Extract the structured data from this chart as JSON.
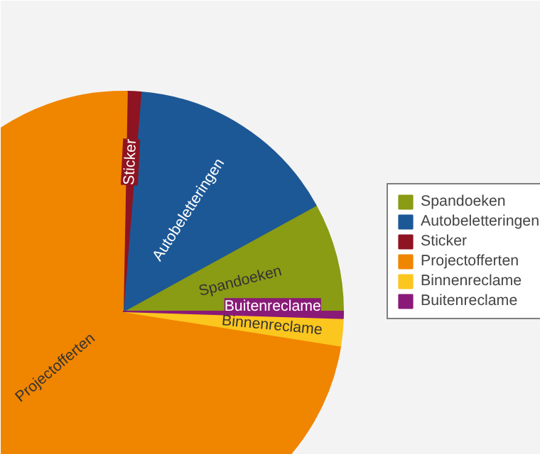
{
  "chart_data": {
    "type": "pie",
    "categories": [
      "Spandoeken",
      "Autobeletteringen",
      "Sticker",
      "Projectofferten",
      "Binnenreclame",
      "Buitenreclame"
    ],
    "values": [
      8,
      15.7,
      1,
      72.8,
      2,
      0.5
    ],
    "colors": [
      "#8a9b14",
      "#1d5896",
      "#8e1422",
      "#f08500",
      "#fbc61e",
      "#8a1a78"
    ],
    "legend": "right"
  }
}
